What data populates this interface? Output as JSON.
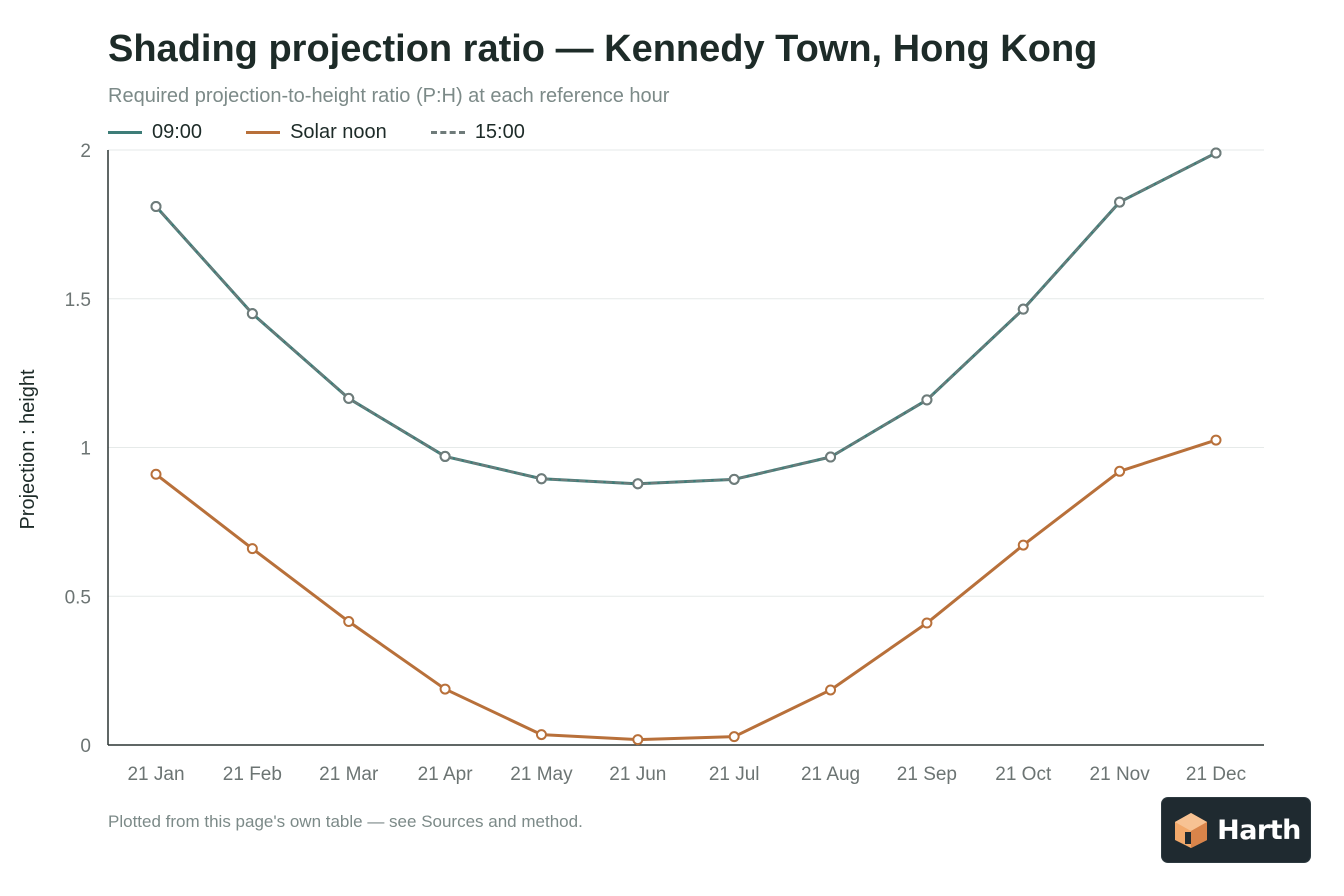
{
  "chart_data": {
    "type": "line",
    "title": "Shading projection ratio — Kennedy Town, Hong Kong",
    "subtitle": "Required projection-to-height ratio (P:H) at each reference hour",
    "xlabel": "",
    "ylabel": "Projection : height",
    "ylim": [
      0,
      2
    ],
    "yticks": [
      "0",
      "0.5",
      "1",
      "1.5",
      "2"
    ],
    "categories": [
      "21 Jan",
      "21 Feb",
      "21 Mar",
      "21 Apr",
      "21 May",
      "21 Jun",
      "21 Jul",
      "21 Aug",
      "21 Sep",
      "21 Oct",
      "21 Nov",
      "21 Dec"
    ],
    "grid": true,
    "legend_position": "top-left",
    "series": [
      {
        "name": "09:00",
        "color": "#3e7d78",
        "dash": false,
        "values": [
          1.81,
          1.45,
          1.165,
          0.97,
          0.895,
          0.878,
          0.893,
          0.968,
          1.16,
          1.465,
          1.825,
          1.99
        ]
      },
      {
        "name": "Solar noon",
        "color": "#b8703a",
        "dash": false,
        "values": [
          0.91,
          0.66,
          0.415,
          0.188,
          0.035,
          0.018,
          0.028,
          0.185,
          0.41,
          0.672,
          0.92,
          1.025
        ]
      },
      {
        "name": "15:00",
        "color": "#6f7b7a",
        "dash": true,
        "values": [
          1.81,
          1.45,
          1.165,
          0.97,
          0.895,
          0.878,
          0.893,
          0.968,
          1.16,
          1.465,
          1.825,
          1.99
        ]
      }
    ]
  },
  "footnote": "Plotted from this page's own table — see Sources and method.",
  "logo": {
    "text": "Harth",
    "color": "#f2a96b"
  }
}
